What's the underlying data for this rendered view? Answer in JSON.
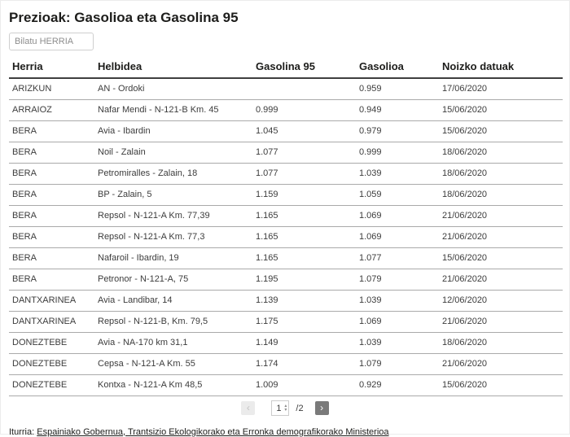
{
  "title": "Prezioak: Gasolioa eta Gasolina 95",
  "search": {
    "placeholder": "Bilatu HERRIA"
  },
  "table": {
    "columns": [
      "Herria",
      "Helbidea",
      "Gasolina 95",
      "Gasolioa",
      "Noizko datuak"
    ],
    "rows": [
      [
        "ARIZKUN",
        "AN - Ordoki",
        "",
        "0.959",
        "17/06/2020"
      ],
      [
        "ARRAIOZ",
        "Nafar Mendi - N-121-B Km. 45",
        "0.999",
        "0.949",
        "15/06/2020"
      ],
      [
        "BERA",
        "Avia - Ibardin",
        "1.045",
        "0.979",
        "15/06/2020"
      ],
      [
        "BERA",
        "Noil - Zalain",
        "1.077",
        "0.999",
        "18/06/2020"
      ],
      [
        "BERA",
        "Petromiralles - Zalain, 18",
        "1.077",
        "1.039",
        "18/06/2020"
      ],
      [
        "BERA",
        "BP - Zalain, 5",
        "1.159",
        "1.059",
        "18/06/2020"
      ],
      [
        "BERA",
        "Repsol - N-121-A Km. 77,39",
        "1.165",
        "1.069",
        "21/06/2020"
      ],
      [
        "BERA",
        "Repsol - N-121-A Km. 77,3",
        "1.165",
        "1.069",
        "21/06/2020"
      ],
      [
        "BERA",
        "Nafaroil - Ibardin, 19",
        "1.165",
        "1.077",
        "15/06/2020"
      ],
      [
        "BERA",
        "Petronor - N-121-A, 75",
        "1.195",
        "1.079",
        "21/06/2020"
      ],
      [
        "DANTXARINEA",
        "Avia - Landibar, 14",
        "1.139",
        "1.039",
        "12/06/2020"
      ],
      [
        "DANTXARINEA",
        "Repsol - N-121-B, Km. 79,5",
        "1.175",
        "1.069",
        "21/06/2020"
      ],
      [
        "DONEZTEBE",
        "Avia - NA-170 km 31,1",
        "1.149",
        "1.039",
        "18/06/2020"
      ],
      [
        "DONEZTEBE",
        "Cepsa - N-121-A Km. 55",
        "1.174",
        "1.079",
        "21/06/2020"
      ],
      [
        "DONEZTEBE",
        "Kontxa - N-121-A Km 48,5",
        "1.009",
        "0.929",
        "15/06/2020"
      ]
    ]
  },
  "pagination": {
    "page": "1",
    "total": "/2",
    "prev_icon": "‹",
    "next_icon": "›",
    "spinner_up_icon": "▴",
    "spinner_down_icon": "▾"
  },
  "footer": {
    "source_label": "Iturria: ",
    "source_link": "Espainiako Gobernua, Trantsizio Ekologikorako eta Erronka demografikorako Ministerioa"
  }
}
